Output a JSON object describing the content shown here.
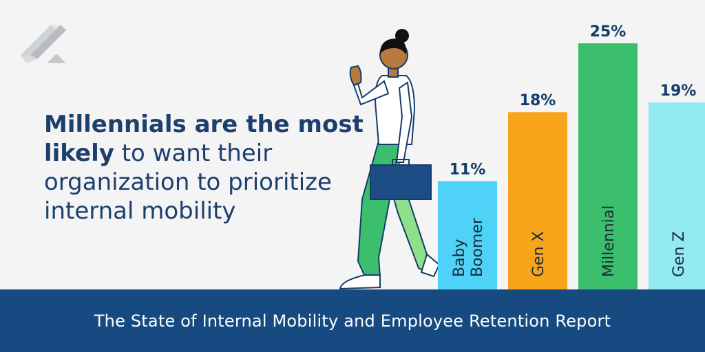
{
  "headline": {
    "bold": "Millennials are the most likely",
    "rest": " to want their organization to prioritize internal mobility"
  },
  "footer": {
    "title": "The State of Internal Mobility and Employee Retention Report"
  },
  "colors": {
    "background": "#f4f4f4",
    "headline": "#1c3f6e",
    "footer_bg": "#164a80",
    "value_label": "#143c6b",
    "category_label": "#1a2b3c"
  },
  "icons": {
    "logo": "brand-logo-icon",
    "figure": "walking-woman-with-briefcase-illustration"
  },
  "chart_data": {
    "type": "bar",
    "orientation": "vertical",
    "categories": [
      "Baby Boomer",
      "Gen X",
      "Millennial",
      "Gen Z"
    ],
    "category_lines": [
      [
        "Baby",
        "Boomer"
      ],
      [
        "Gen X"
      ],
      [
        "Millennial"
      ],
      [
        "Gen Z"
      ]
    ],
    "values": [
      11,
      18,
      25,
      19
    ],
    "value_labels": [
      "11%",
      "18%",
      "25%",
      "19%"
    ],
    "colors": [
      "#4fd2f7",
      "#f8a51c",
      "#3cbf6c",
      "#92e9f2"
    ],
    "unit": "%",
    "ylim": [
      0,
      25
    ],
    "category_label_orientation": "vertical-inside-bar",
    "grid": false,
    "legend": "none"
  }
}
